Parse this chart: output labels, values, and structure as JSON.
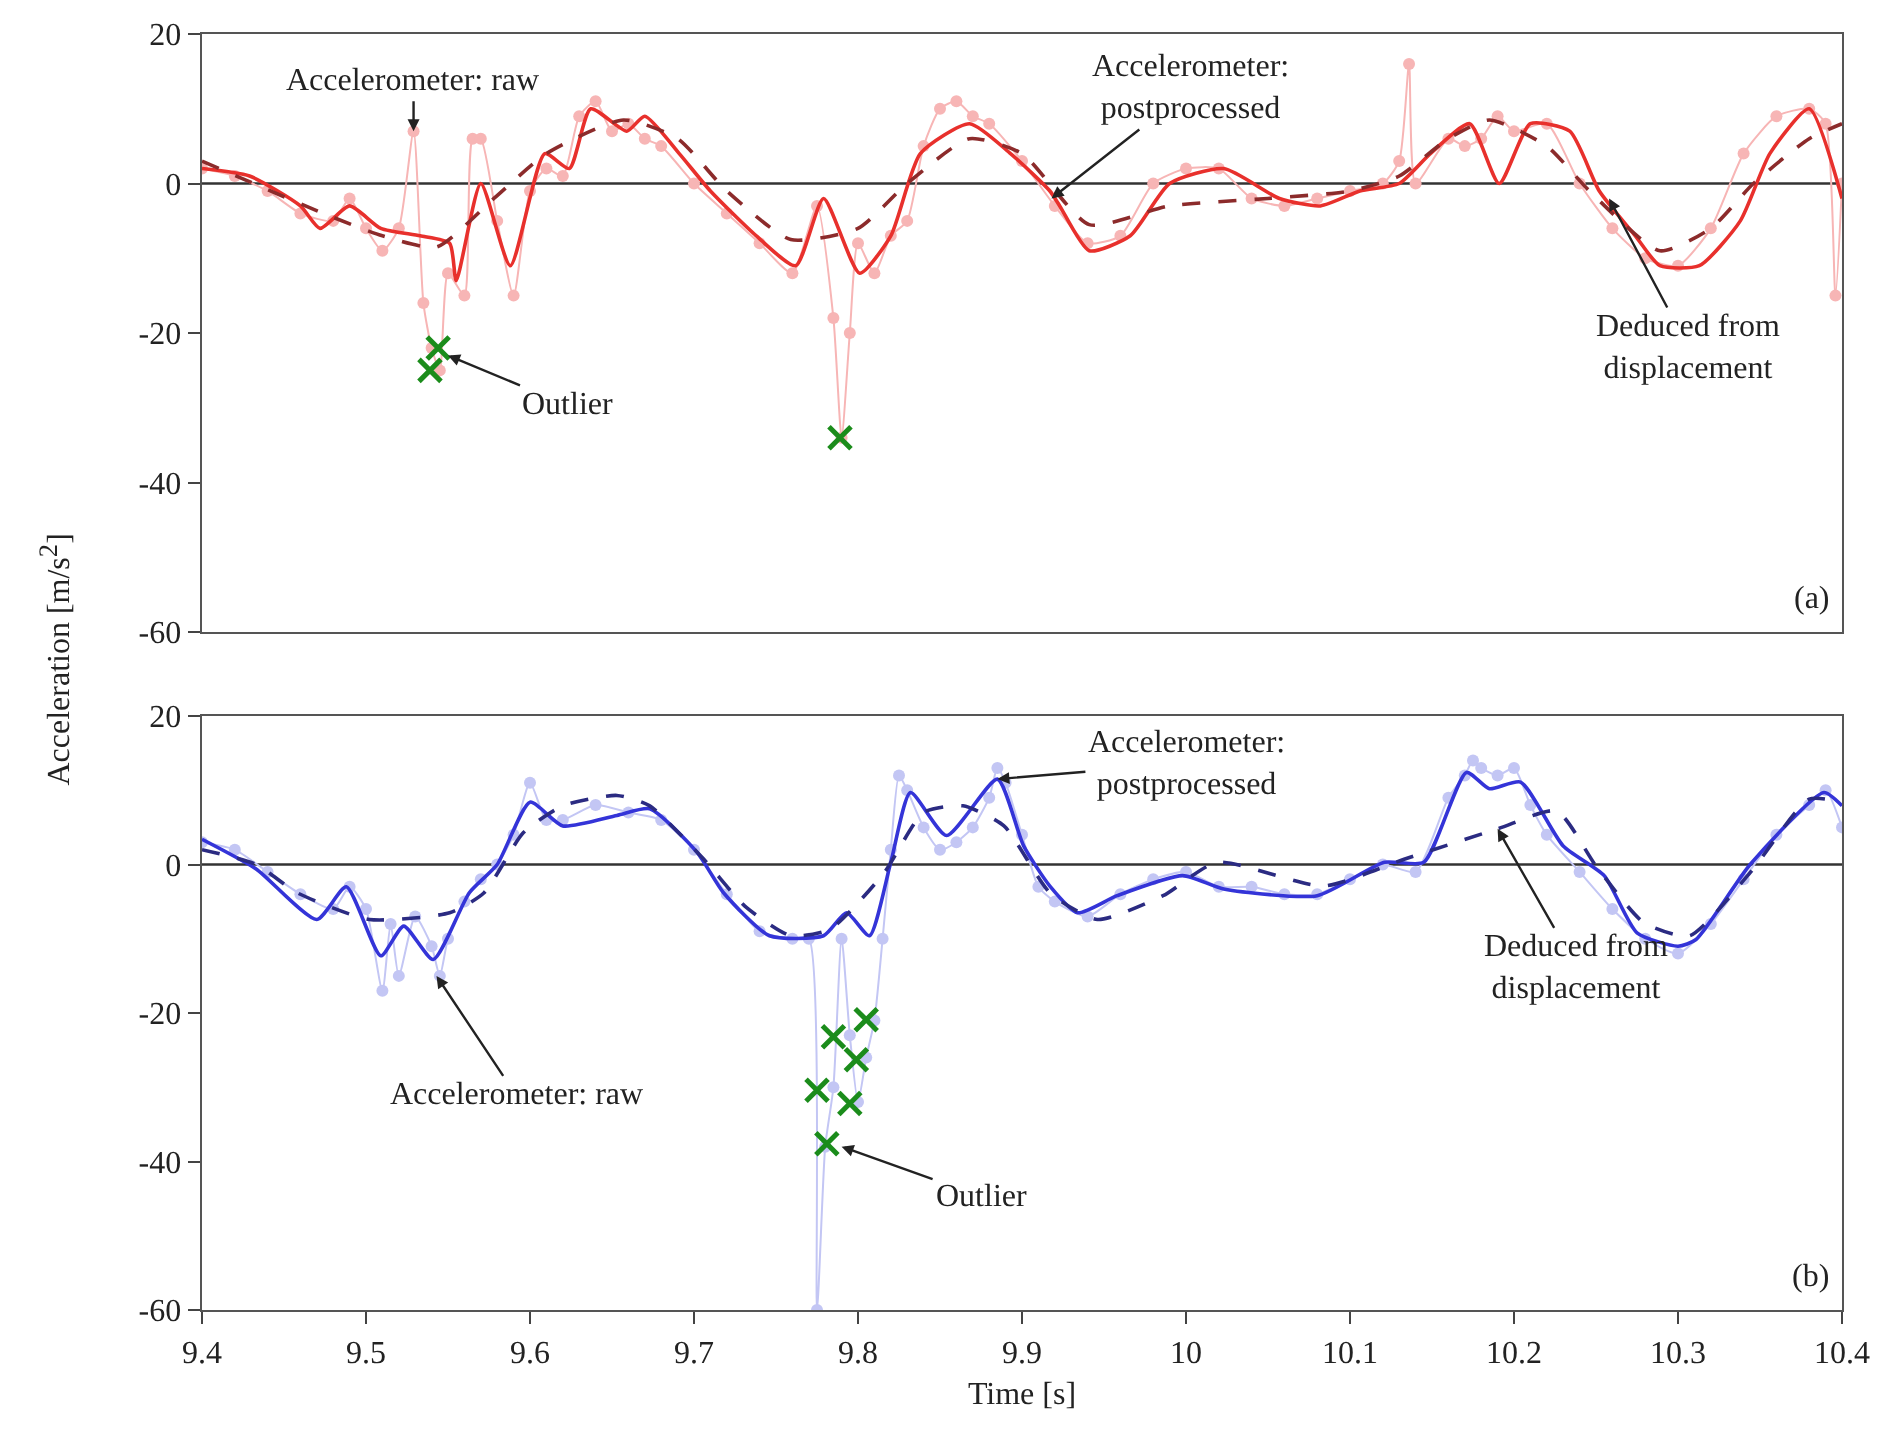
{
  "chart_data": [
    {
      "type": "line",
      "ylabel": "Acceleration [m/s$^{2}$]",
      "xlim": [
        9.4,
        10.4
      ],
      "ylim": [
        -60,
        20
      ],
      "yticks": [
        -60,
        -40,
        -20,
        0,
        20
      ],
      "xticks": [
        9.4,
        9.5,
        9.6,
        9.7,
        9.8,
        9.9,
        10,
        10.1,
        10.2,
        10.3,
        10.4
      ],
      "tick_labels": "y",
      "grid": false,
      "ref_lines": [
        {
          "axis": "y",
          "value": 0
        }
      ],
      "series": [
        {
          "color": "#f7b5b5",
          "marker": "circle",
          "line_style": "solid",
          "x": [
            9.4,
            9.42,
            9.44,
            9.46,
            9.48,
            9.49,
            9.5,
            9.51,
            9.52,
            9.529,
            9.535,
            9.54,
            9.545,
            9.55,
            9.56,
            9.565,
            9.57,
            9.58,
            9.59,
            9.6,
            9.61,
            9.62,
            9.63,
            9.64,
            9.65,
            9.66,
            9.67,
            9.68,
            9.7,
            9.72,
            9.74,
            9.76,
            9.775,
            9.785,
            9.79,
            9.795,
            9.8,
            9.81,
            9.82,
            9.83,
            9.84,
            9.85,
            9.86,
            9.87,
            9.88,
            9.9,
            9.92,
            9.94,
            9.96,
            9.98,
            10.0,
            10.02,
            10.04,
            10.06,
            10.08,
            10.1,
            10.12,
            10.13,
            10.136,
            10.14,
            10.16,
            10.17,
            10.18,
            10.19,
            10.2,
            10.22,
            10.24,
            10.26,
            10.28,
            10.3,
            10.32,
            10.34,
            10.36,
            10.38,
            10.39,
            10.396,
            10.4
          ],
          "values": [
            2,
            1,
            -1,
            -4,
            -5,
            -2,
            -6,
            -9,
            -6,
            7,
            -16,
            -22,
            -25,
            -12,
            -15,
            6,
            6,
            -5,
            -15,
            -1,
            2,
            1,
            9,
            11,
            7,
            8,
            6,
            5,
            0,
            -4,
            -8,
            -12,
            -3,
            -18,
            -34,
            -20,
            -8,
            -12,
            -7,
            -5,
            5,
            10,
            11,
            9,
            8,
            3,
            -3,
            -8,
            -7,
            0,
            2,
            2,
            -2,
            -3,
            -2,
            -1,
            0,
            3,
            16,
            0,
            6,
            5,
            6,
            9,
            7,
            8,
            0,
            -6,
            -10,
            -11,
            -6,
            4,
            9,
            10,
            8,
            -15,
            0
          ]
        },
        {
          "color": "#e8302c",
          "marker": "none",
          "line_style": "solid",
          "x": [
            9.4,
            9.429,
            9.46,
            9.472,
            9.49,
            9.509,
            9.533,
            9.551,
            9.555,
            9.57,
            9.588,
            9.609,
            9.624,
            9.637,
            9.659,
            9.67,
            9.691,
            9.71,
            9.738,
            9.762,
            9.779,
            9.801,
            9.82,
            9.838,
            9.868,
            9.893,
            9.917,
            9.923,
            9.941,
            9.966,
            9.99,
            10.023,
            10.057,
            10.082,
            10.106,
            10.13,
            10.149,
            10.173,
            10.191,
            10.21,
            10.234,
            10.252,
            10.274,
            10.289,
            10.313,
            10.338,
            10.356,
            10.38,
            10.4
          ],
          "values": [
            2,
            1,
            -3,
            -6,
            -3,
            -6,
            -7,
            -8,
            -13,
            0,
            -11,
            4,
            2,
            10,
            7,
            9,
            4,
            -1,
            -7,
            -11,
            -2,
            -12,
            -7,
            4,
            8,
            4,
            -1,
            -3,
            -9,
            -7,
            0,
            2,
            -2,
            -3,
            -1,
            0,
            4,
            8,
            0,
            8,
            7,
            -1,
            -7,
            -11,
            -11,
            -5,
            4,
            10,
            -2
          ]
        },
        {
          "color": "#8c2b2b",
          "marker": "none",
          "line_style": "dashed",
          "x": [
            9.4,
            9.474,
            9.51,
            9.543,
            9.578,
            9.61,
            9.657,
            9.69,
            9.72,
            9.759,
            9.8,
            9.83,
            9.868,
            9.9,
            9.941,
            9.99,
            10.05,
            10.1,
            10.13,
            10.16,
            10.185,
            10.22,
            10.246,
            10.289,
            10.32,
            10.346,
            10.38,
            10.4
          ],
          "values": [
            3,
            -4,
            -7,
            -8.5,
            -2,
            4,
            8.5,
            6,
            -1,
            -7.5,
            -6,
            0,
            6,
            4,
            -5.5,
            -3,
            -2,
            -1,
            1,
            6,
            8.5,
            5,
            -1,
            -9,
            -6,
            0,
            6,
            8
          ]
        },
        {
          "type": "scatter",
          "color": "#1b8c1b",
          "marker": "cross",
          "x": [
            9.539,
            9.544,
            9.789
          ],
          "values": [
            -25,
            -22,
            -34
          ]
        }
      ],
      "annotations": [
        {
          "text": "Accelerometer: raw",
          "x": 9.529,
          "y": 7
        },
        {
          "text": "Outlier",
          "x": 9.55,
          "y": -23
        },
        {
          "text": "Accelerometer:\npostprocessed",
          "x": 9.918,
          "y": -2
        },
        {
          "text": "Deduced from\ndisplacement",
          "x": 10.258,
          "y": -2
        },
        "(a)"
      ]
    },
    {
      "type": "line",
      "xlabel": "Time [s]",
      "xlim": [
        9.4,
        10.4
      ],
      "ylim": [
        -60,
        20
      ],
      "yticks": [
        -60,
        -40,
        -20,
        0,
        20
      ],
      "xticks": [
        9.4,
        9.5,
        9.6,
        9.7,
        9.8,
        9.9,
        10,
        10.1,
        10.2,
        10.3,
        10.4
      ],
      "grid": false,
      "ref_lines": [
        {
          "axis": "y",
          "value": 0
        }
      ],
      "series": [
        {
          "color": "#c3c6f4",
          "marker": "circle",
          "line_style": "solid",
          "x": [
            9.4,
            9.42,
            9.44,
            9.46,
            9.48,
            9.49,
            9.5,
            9.51,
            9.515,
            9.52,
            9.53,
            9.54,
            9.545,
            9.55,
            9.56,
            9.57,
            9.58,
            9.59,
            9.6,
            9.61,
            9.62,
            9.64,
            9.66,
            9.68,
            9.7,
            9.72,
            9.74,
            9.76,
            9.77,
            9.775,
            9.78,
            9.785,
            9.79,
            9.795,
            9.8,
            9.805,
            9.81,
            9.815,
            9.82,
            9.825,
            9.83,
            9.84,
            9.85,
            9.86,
            9.87,
            9.88,
            9.885,
            9.89,
            9.9,
            9.91,
            9.92,
            9.94,
            9.96,
            9.98,
            10.0,
            10.02,
            10.04,
            10.06,
            10.08,
            10.1,
            10.12,
            10.14,
            10.16,
            10.17,
            10.175,
            10.18,
            10.19,
            10.2,
            10.21,
            10.22,
            10.24,
            10.26,
            10.28,
            10.3,
            10.32,
            10.34,
            10.36,
            10.38,
            10.39,
            10.4
          ],
          "values": [
            3,
            2,
            -1,
            -4,
            -6,
            -3,
            -6,
            -17,
            -8,
            -15,
            -7,
            -11,
            -15,
            -10,
            -5,
            -2,
            0,
            4,
            11,
            6,
            6,
            8,
            7,
            6,
            2,
            -4,
            -9,
            -10,
            -10,
            -60,
            -38,
            -30,
            -10,
            -23,
            -32,
            -26,
            -21,
            -10,
            2,
            12,
            10,
            5,
            2,
            3,
            5,
            9,
            13,
            11,
            4,
            -3,
            -5,
            -7,
            -4,
            -2,
            -1,
            -3,
            -3,
            -4,
            -4,
            -2,
            0,
            -1,
            9,
            12,
            14,
            13,
            12,
            13,
            8,
            4,
            -1,
            -6,
            -10,
            -12,
            -8,
            -2,
            4,
            8,
            10,
            5
          ]
        },
        {
          "color": "#3434d8",
          "marker": "none",
          "line_style": "solid",
          "x": [
            9.4,
            9.433,
            9.47,
            9.488,
            9.509,
            9.523,
            9.541,
            9.563,
            9.58,
            9.6,
            9.62,
            9.653,
            9.673,
            9.702,
            9.718,
            9.746,
            9.779,
            9.793,
            9.807,
            9.82,
            9.832,
            9.854,
            9.885,
            9.901,
            9.917,
            9.934,
            9.958,
            9.998,
            10.023,
            10.08,
            10.121,
            10.145,
            10.171,
            10.185,
            10.204,
            10.23,
            10.255,
            10.275,
            10.3,
            10.311,
            10.344,
            10.389,
            10.4
          ],
          "values": [
            3.4,
            -0.6,
            -7.4,
            -3,
            -12.3,
            -8.3,
            -12.8,
            -3.8,
            0,
            8.4,
            5.2,
            6.6,
            7.5,
            1.6,
            -3.8,
            -9.6,
            -9.6,
            -6.5,
            -9.6,
            0.3,
            9.7,
            3.9,
            11.5,
            2.5,
            -2.9,
            -6.5,
            -4.2,
            -1.5,
            -3.3,
            -4.2,
            0.3,
            0.3,
            12.4,
            10.2,
            11.1,
            2.5,
            -1.5,
            -9.2,
            -11,
            -10.1,
            0,
            9.7,
            7.9
          ]
        },
        {
          "color": "#2b2b82",
          "marker": "none",
          "line_style": "dashed",
          "x": [
            9.4,
            9.433,
            9.458,
            9.502,
            9.551,
            9.572,
            9.596,
            9.62,
            9.653,
            9.673,
            9.706,
            9.731,
            9.759,
            9.783,
            9.816,
            9.84,
            9.864,
            9.889,
            9.917,
            9.946,
            9.986,
            10.019,
            10.084,
            10.133,
            10.19,
            10.226,
            10.25,
            10.279,
            10.307,
            10.344,
            10.38,
            10.4
          ],
          "values": [
            2,
            0,
            -3.8,
            -7.4,
            -6.5,
            -3.8,
            4.3,
            7.9,
            9.3,
            7.9,
            0.7,
            -5.6,
            -9.6,
            -8.7,
            -1.1,
            7,
            7.9,
            5.2,
            -3.8,
            -7.4,
            -4.2,
            0.3,
            -2.9,
            0.7,
            4.8,
            7.2,
            -0.2,
            -7.8,
            -9.6,
            -1.1,
            8.8,
            8.4
          ]
        },
        {
          "type": "scatter",
          "color": "#1b8c1b",
          "marker": "cross",
          "x": [
            9.775,
            9.785,
            9.781,
            9.799,
            9.795,
            9.805
          ],
          "values": [
            -30.4,
            -23.2,
            -37.6,
            -26.3,
            -32.2,
            -20.9
          ]
        }
      ],
      "annotations": [
        {
          "text": "Accelerometer: raw",
          "x": 9.543,
          "y": -15
        },
        {
          "text": "Outlier",
          "x": 9.79,
          "y": -38
        },
        {
          "text": "Accelerometer:\npostprocessed",
          "x": 9.885,
          "y": 11.5
        },
        {
          "text": "Deduced from\ndisplacement",
          "x": 10.19,
          "y": 4.8
        },
        "(b)"
      ]
    }
  ]
}
